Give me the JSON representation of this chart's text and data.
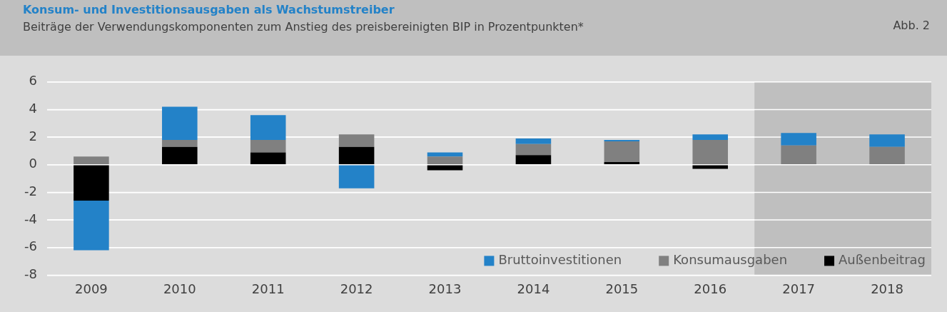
{
  "chart_data": {
    "type": "bar",
    "title": "Konsum- und Investitionsausgaben als Wachstumstreiber",
    "subtitle": "Beiträge der Verwendungskomponenten zum Anstieg des preisbereinigten BIP in Prozentpunkten*",
    "annotations": [
      "Abb. 2"
    ],
    "categories": [
      "2009",
      "2010",
      "2011",
      "2012",
      "2013",
      "2014",
      "2015",
      "2016",
      "2017",
      "2018"
    ],
    "stacked": true,
    "series": [
      {
        "name": "Außenbeitrag",
        "color": "#000000",
        "values": [
          -2.6,
          1.3,
          0.9,
          1.3,
          -0.4,
          0.7,
          0.2,
          -0.3,
          0,
          0
        ]
      },
      {
        "name": "Konsumausgaben",
        "color": "#808080",
        "values": [
          0.6,
          0.5,
          0.9,
          0.9,
          0.6,
          0.8,
          1.5,
          1.8,
          1.4,
          1.3
        ]
      },
      {
        "name": "Bruttoinvestitionen",
        "color": "#2382c8",
        "values": [
          -3.6,
          2.4,
          1.8,
          -1.7,
          0.3,
          0.4,
          0.1,
          0.4,
          0.9,
          0.9
        ]
      }
    ],
    "ylim": [
      -8,
      6
    ],
    "yticks": [
      -8,
      -6,
      -4,
      -2,
      0,
      2,
      4,
      6
    ],
    "bands": [
      {
        "axis": "x",
        "from": "2017",
        "to": "2018",
        "color": "#bfbfbf"
      }
    ],
    "grid": "y",
    "legend": "bottom right"
  }
}
